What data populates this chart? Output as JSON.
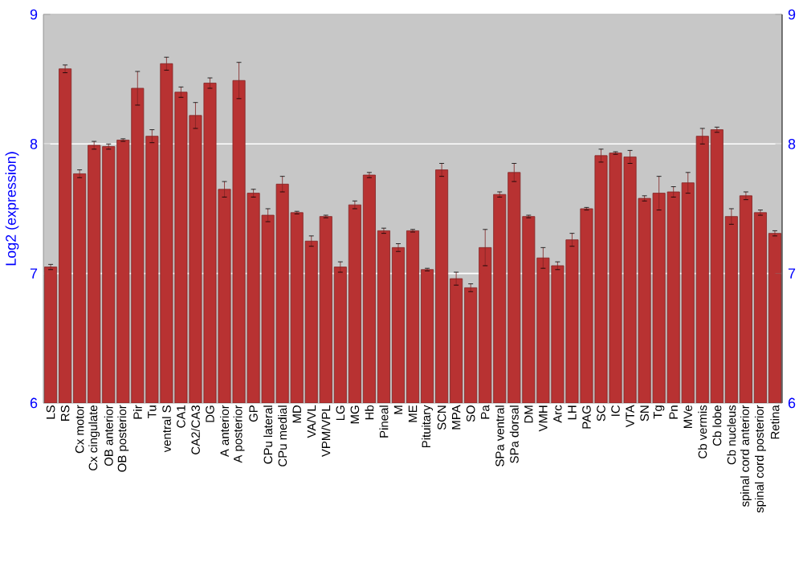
{
  "chart_data": {
    "type": "bar",
    "ylabel": "Log2 (expression)",
    "categories": [
      "LS",
      "RS",
      "Cx motor",
      "Cx cingulate",
      "OB anterior",
      "OB posterior",
      "Pir",
      "Tu",
      "ventral S",
      "CA1",
      "CA2/CA3",
      "DG",
      "A anterior",
      "A posterior",
      "GP",
      "CPu lateral",
      "CPu medial",
      "MD",
      "VA/VL",
      "VPM/VPL",
      "LG",
      "MG",
      "Hb",
      "Pineal",
      "M",
      "ME",
      "Pituitary",
      "SCN",
      "MPA",
      "SO",
      "Pa",
      "SPa ventral",
      "SPa dorsal",
      "DM",
      "VMH",
      "Arc",
      "LH",
      "PAG",
      "SC",
      "IC",
      "VTA",
      "SN",
      "Tg",
      "Pn",
      "MVe",
      "Cb vermis",
      "Cb lobe",
      "Cb nucleus",
      "spinal cord anterior",
      "spinal cord posterior",
      "Retina"
    ],
    "values": [
      7.05,
      8.58,
      7.77,
      7.99,
      7.98,
      8.03,
      8.43,
      8.06,
      8.62,
      8.4,
      8.22,
      8.47,
      7.65,
      8.49,
      7.62,
      7.45,
      7.69,
      7.47,
      7.25,
      7.44,
      7.05,
      7.53,
      7.76,
      7.33,
      7.2,
      7.33,
      7.03,
      7.8,
      6.96,
      6.89,
      7.2,
      7.61,
      7.78,
      7.44,
      7.12,
      7.06,
      7.26,
      7.5,
      7.91,
      7.93,
      7.9,
      7.58,
      7.62,
      7.63,
      7.7,
      8.06,
      8.11,
      7.44,
      7.6,
      7.47,
      7.31
    ],
    "errors": [
      0.02,
      0.03,
      0.03,
      0.03,
      0.02,
      0.01,
      0.13,
      0.05,
      0.05,
      0.04,
      0.1,
      0.04,
      0.06,
      0.14,
      0.03,
      0.05,
      0.06,
      0.01,
      0.04,
      0.01,
      0.04,
      0.03,
      0.02,
      0.02,
      0.03,
      0.01,
      0.01,
      0.05,
      0.05,
      0.03,
      0.14,
      0.02,
      0.07,
      0.01,
      0.08,
      0.03,
      0.05,
      0.01,
      0.05,
      0.01,
      0.05,
      0.02,
      0.13,
      0.04,
      0.08,
      0.06,
      0.02,
      0.06,
      0.03,
      0.02,
      0.02
    ],
    "color": "#b83232",
    "ylim": [
      6,
      9
    ],
    "yticks": [
      6,
      7,
      8,
      9
    ],
    "y2lim": [
      6,
      9
    ],
    "y2ticks": [
      6,
      7,
      8,
      9
    ],
    "grid": "y"
  }
}
